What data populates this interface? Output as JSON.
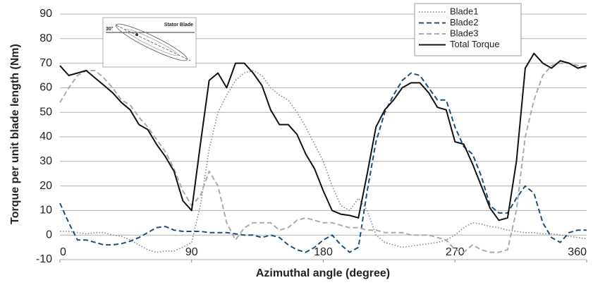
{
  "chart_data": {
    "type": "line",
    "x_label": "Azimuthal angle (degree)",
    "y_label": "Torque per unit blade length (Nm)",
    "inset": {
      "title": "Stator Blade",
      "angle_label": "30°"
    },
    "x": [
      0,
      6,
      12,
      18,
      24,
      30,
      36,
      42,
      48,
      54,
      60,
      66,
      72,
      78,
      84,
      90,
      96,
      102,
      108,
      114,
      120,
      126,
      132,
      138,
      144,
      150,
      156,
      162,
      168,
      174,
      180,
      186,
      192,
      198,
      204,
      210,
      216,
      222,
      228,
      234,
      240,
      246,
      252,
      258,
      264,
      270,
      276,
      282,
      288,
      294,
      300,
      306,
      312,
      318,
      324,
      330,
      336,
      342,
      348,
      354,
      360
    ],
    "series": [
      {
        "name": "Blade1",
        "color": "#888888",
        "dash": "dotted",
        "values": [
          1.5,
          1.5,
          1,
          0.5,
          1,
          1,
          0,
          -0.5,
          -2,
          -4,
          -6,
          -7,
          -6.5,
          -6.5,
          -5,
          -3,
          12,
          35,
          50,
          57,
          63,
          66,
          67,
          65,
          60,
          57,
          55,
          50,
          44,
          37,
          30,
          20,
          12,
          10,
          15,
          10,
          0,
          -3,
          -4,
          -5,
          -4.5,
          -4,
          -3.5,
          -3,
          -2,
          0,
          3,
          5,
          4.5,
          3.5,
          3,
          2,
          1.5,
          1,
          1,
          0.5,
          0.5,
          0,
          -0.5,
          -1,
          -1.5
        ]
      },
      {
        "name": "Blade2",
        "color": "#1f4e79",
        "dash": "dashed",
        "values": [
          13,
          5,
          -2,
          -2,
          -3,
          -4,
          -4,
          -3.5,
          -2.5,
          -1,
          1,
          3,
          3.5,
          2,
          1.5,
          1.5,
          1.5,
          1,
          1,
          1,
          0.5,
          0,
          0,
          -1,
          0,
          -1,
          -4,
          -6,
          -7,
          -5,
          -2,
          0,
          -4,
          -7,
          -5,
          18,
          38,
          50,
          57,
          63,
          66,
          65,
          60,
          55,
          55,
          44,
          36,
          33,
          24,
          12,
          9,
          9,
          15,
          20,
          17,
          5,
          -1,
          -3,
          1,
          2,
          2
        ]
      },
      {
        "name": "Blade3",
        "color": "#aaaaaa",
        "dash": "dashed",
        "values": [
          54,
          60,
          65,
          67,
          67,
          64,
          60,
          55,
          53,
          48,
          44,
          39,
          34,
          27,
          18,
          12,
          16,
          26,
          20,
          5,
          -2,
          3,
          5,
          5,
          5,
          2,
          3,
          6,
          7,
          6,
          5,
          5,
          4,
          3,
          3,
          2,
          2,
          1,
          1,
          1,
          0,
          0,
          0,
          -1,
          -2,
          -6,
          -7,
          -4,
          -6,
          -7,
          -7,
          -6,
          10,
          40,
          55,
          65,
          69,
          70,
          70,
          69,
          68
        ]
      },
      {
        "name": "Total Torque",
        "color": "#111111",
        "dash": "solid",
        "values": [
          69,
          65,
          66,
          67,
          64,
          61,
          58,
          54,
          51,
          45,
          43,
          37,
          32,
          26,
          14,
          10,
          37,
          63,
          66,
          60,
          70,
          70,
          66,
          61,
          51,
          45,
          45,
          41,
          33,
          27,
          18,
          10,
          8.5,
          8,
          7,
          25,
          44,
          51,
          55,
          60,
          62,
          62,
          58,
          52,
          51,
          38,
          37,
          29,
          20,
          11,
          6,
          7,
          30,
          68,
          74,
          70,
          68,
          71,
          70,
          68,
          69
        ]
      }
    ],
    "xlim": [
      0,
      360
    ],
    "xticks": [
      0,
      90,
      180,
      270,
      360
    ],
    "ylim": [
      -10,
      90
    ],
    "yticks": [
      -10,
      0,
      10,
      20,
      30,
      40,
      50,
      60,
      70,
      80,
      90
    ],
    "grid": true,
    "legend": "top-right"
  }
}
